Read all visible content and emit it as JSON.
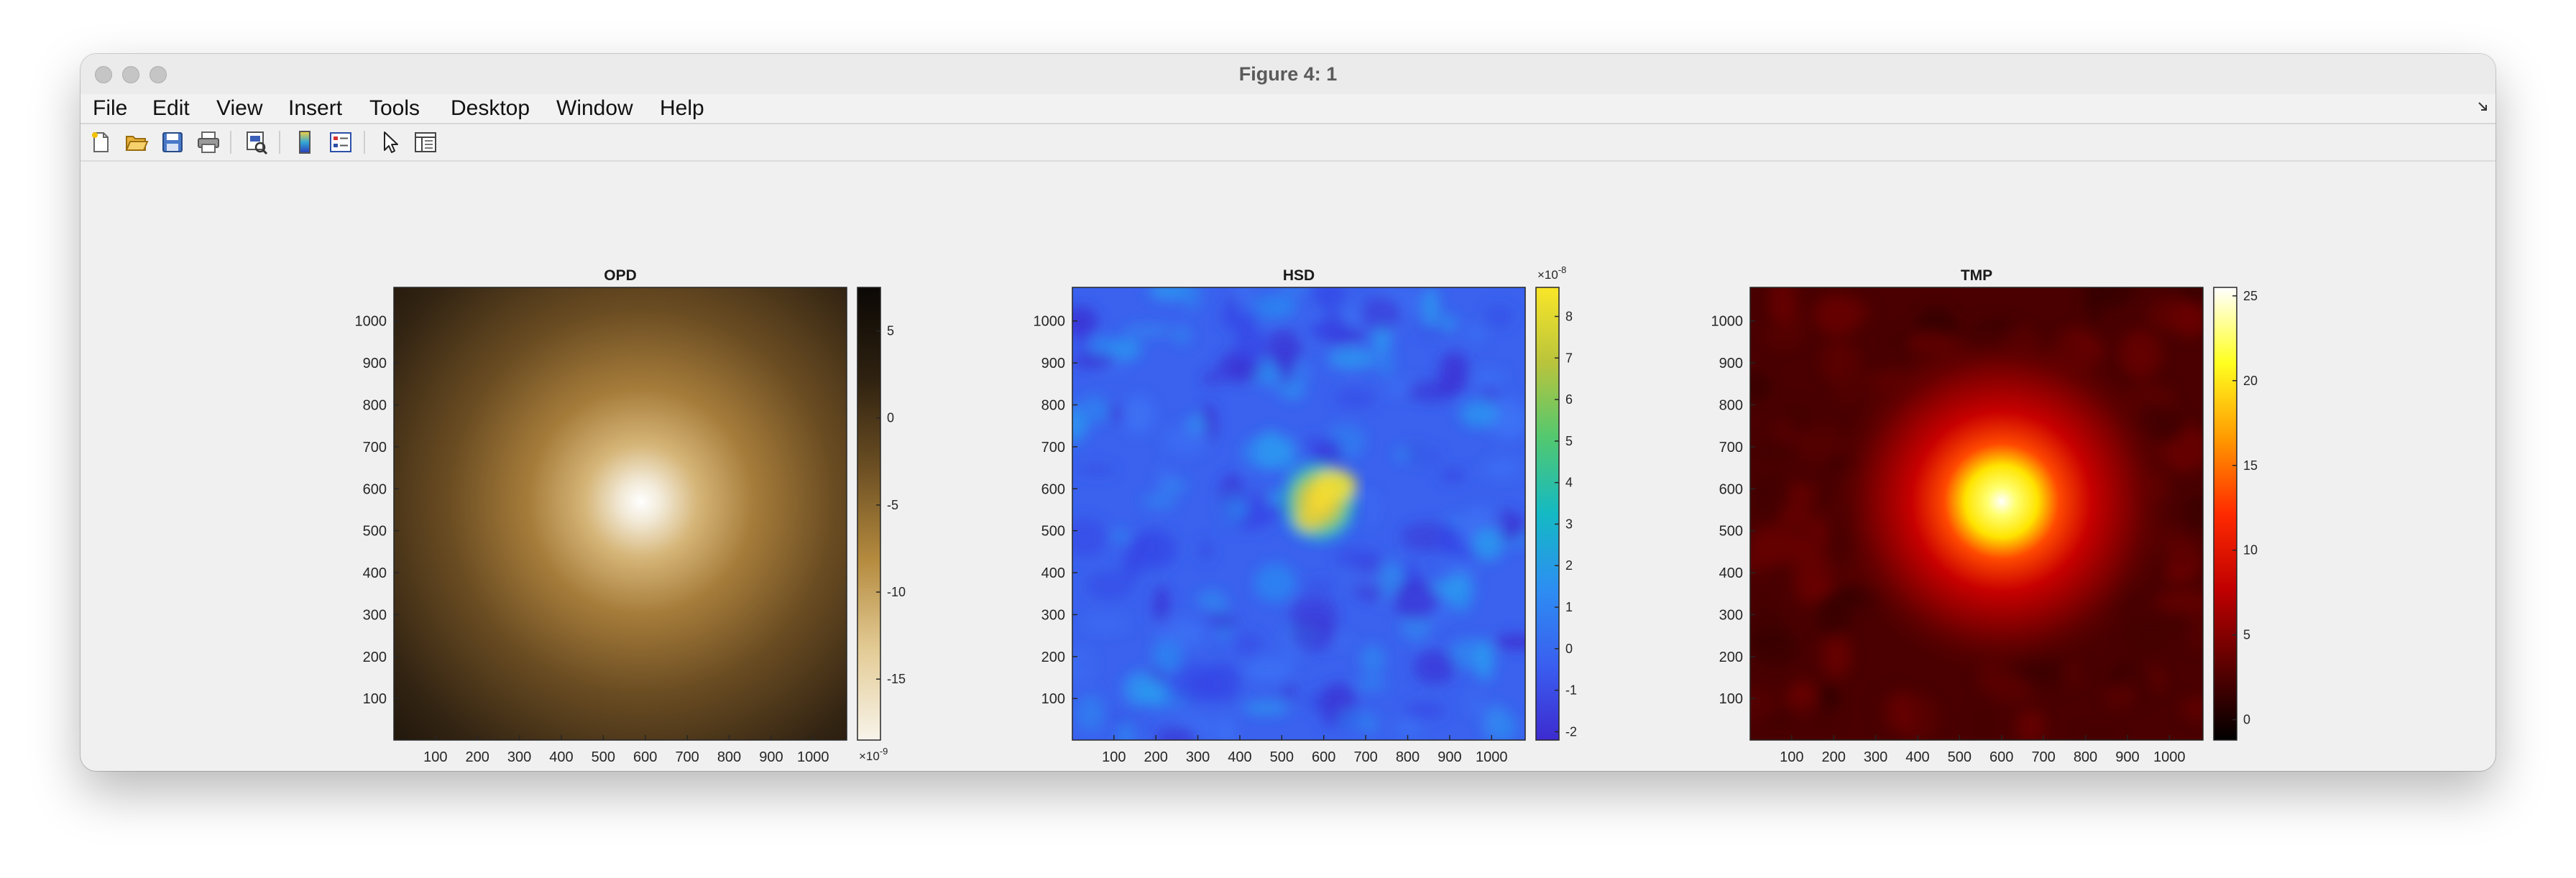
{
  "window": {
    "title": "Figure 4: 1"
  },
  "menu": [
    {
      "id": "file",
      "label": "File"
    },
    {
      "id": "edit",
      "label": "Edit"
    },
    {
      "id": "view",
      "label": "View"
    },
    {
      "id": "insert",
      "label": "Insert"
    },
    {
      "id": "tools",
      "label": "Tools"
    },
    {
      "id": "desktop",
      "label": "Desktop"
    },
    {
      "id": "window",
      "label": "Window"
    },
    {
      "id": "help",
      "label": "Help"
    }
  ],
  "toolbar": {
    "buttons": [
      "new-figure-icon",
      "open-file-icon",
      "save-icon",
      "print-icon",
      "print-preview-icon",
      "colorbar-icon",
      "legend-icon",
      "pointer-icon",
      "property-editor-icon"
    ]
  },
  "chart_data": [
    {
      "type": "heatmap",
      "title": "OPD",
      "xlim": [
        1,
        1080
      ],
      "ylim": [
        1,
        1080
      ],
      "xticks": [
        100,
        200,
        300,
        400,
        500,
        600,
        700,
        800,
        900,
        1000
      ],
      "yticks": [
        100,
        200,
        300,
        400,
        500,
        600,
        700,
        800,
        900,
        1000
      ],
      "colorbar": {
        "ticks": [
          5,
          0,
          -5,
          -10,
          -15
        ],
        "range": [
          -18.5,
          7.5
        ],
        "exponent_label": "×10",
        "exponent": "-9",
        "exponent_position": "bottom"
      },
      "colormap": [
        "#f8f4ea",
        "#e3cb95",
        "#b48a3e",
        "#6c4f23",
        "#2e2110",
        "#0b0805"
      ],
      "peak": {
        "x": 590,
        "y": 570
      }
    },
    {
      "type": "heatmap",
      "title": "HSD",
      "xlim": [
        1,
        1080
      ],
      "ylim": [
        1,
        1080
      ],
      "xticks": [
        100,
        200,
        300,
        400,
        500,
        600,
        700,
        800,
        900,
        1000
      ],
      "yticks": [
        100,
        200,
        300,
        400,
        500,
        600,
        700,
        800,
        900,
        1000
      ],
      "colorbar": {
        "ticks": [
          8,
          7,
          6,
          5,
          4,
          3,
          2,
          1,
          0,
          -1,
          -2
        ],
        "range": [
          -2.2,
          8.7
        ],
        "exponent_label": "×10",
        "exponent": "-8",
        "exponent_position": "top"
      },
      "colormap": [
        "#3d2bd0",
        "#3a5ff0",
        "#2d8ef2",
        "#14b9c4",
        "#52c870",
        "#b9c43c",
        "#f9e628"
      ],
      "peak": {
        "x": 590,
        "y": 570
      }
    },
    {
      "type": "heatmap",
      "title": "TMP",
      "xlim": [
        1,
        1080
      ],
      "ylim": [
        1,
        1080
      ],
      "xticks": [
        100,
        200,
        300,
        400,
        500,
        600,
        700,
        800,
        900,
        1000
      ],
      "yticks": [
        100,
        200,
        300,
        400,
        500,
        600,
        700,
        800,
        900,
        1000
      ],
      "colorbar": {
        "ticks": [
          25,
          20,
          15,
          10,
          5,
          0
        ],
        "range": [
          -1.2,
          25.5
        ],
        "exponent_label": "",
        "exponent": "",
        "exponent_position": "none"
      },
      "colormap": [
        "#000000",
        "#5e0000",
        "#c00000",
        "#ff2a00",
        "#ff9a00",
        "#ffff20",
        "#ffffff"
      ],
      "peak": {
        "x": 600,
        "y": 570
      }
    }
  ]
}
